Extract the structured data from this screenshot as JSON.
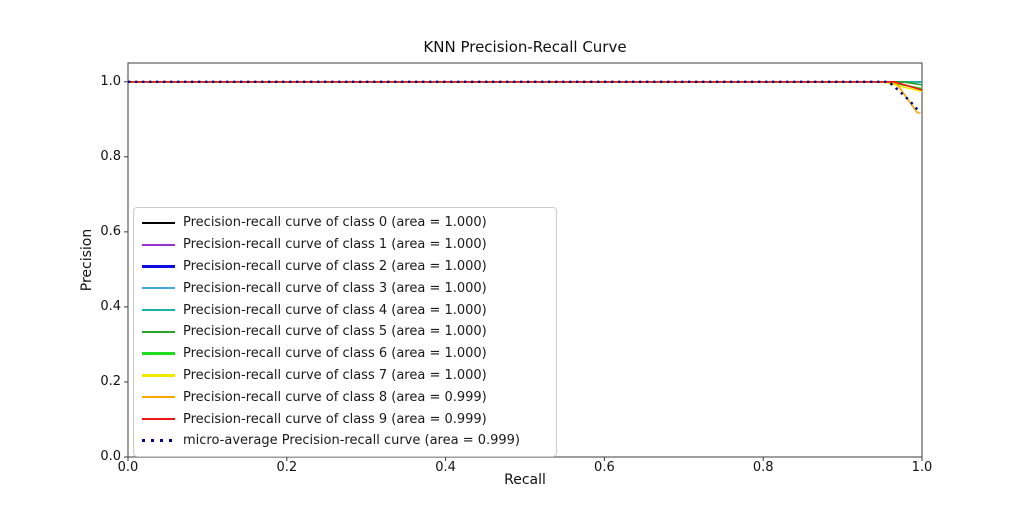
{
  "figure": {
    "title": "KNN Precision-Recall Curve",
    "xlabel": "Recall",
    "ylabel": "Precision"
  },
  "chart_data": {
    "type": "line",
    "title": "KNN Precision-Recall Curve",
    "xlabel": "Recall",
    "ylabel": "Precision",
    "xlim": [
      0.0,
      1.0
    ],
    "ylim": [
      0.0,
      1.05
    ],
    "grid": false,
    "legend_position": "lower left",
    "x_ticks": {
      "values": [
        0,
        0.2,
        0.4,
        0.6,
        0.8,
        1.0
      ],
      "labels": [
        "0.0",
        "0.2",
        "0.4",
        "0.6",
        "0.8",
        "1.0"
      ]
    },
    "y_ticks": {
      "values": [
        0,
        0.2,
        0.4,
        0.6,
        0.8,
        1.0
      ],
      "labels": [
        "0.0",
        "0.2",
        "0.4",
        "0.6",
        "0.8",
        "1.0"
      ]
    },
    "series": [
      {
        "name": "class-0",
        "legend_label": "Precision-recall curve of class 0 (area = 1.000)",
        "area": "1.000",
        "color": "#000000",
        "style": "solid",
        "points": [
          [
            0,
            1
          ],
          [
            1,
            1
          ]
        ]
      },
      {
        "name": "class-1",
        "legend_label": "Precision-recall curve of class 1 (area = 1.000)",
        "area": "1.000",
        "color": "#9932cc",
        "style": "solid",
        "points": [
          [
            0,
            1
          ],
          [
            1,
            1
          ]
        ]
      },
      {
        "name": "class-2",
        "legend_label": "Precision-recall curve of class 2 (area = 1.000)",
        "area": "1.000",
        "color": "#0d0de0",
        "style": "solid",
        "points": [
          [
            0,
            1
          ],
          [
            1,
            1
          ]
        ]
      },
      {
        "name": "class-3",
        "legend_label": "Precision-recall curve of class 3 (area = 1.000)",
        "area": "1.000",
        "color": "#3fa9e0",
        "style": "solid",
        "points": [
          [
            0,
            1
          ],
          [
            1,
            1
          ]
        ]
      },
      {
        "name": "class-4",
        "legend_label": "Precision-recall curve of class 4 (area = 1.000)",
        "area": "1.000",
        "color": "#1bb3a3",
        "style": "solid",
        "points": [
          [
            0,
            1
          ],
          [
            1,
            1
          ]
        ]
      },
      {
        "name": "class-5",
        "legend_label": "Precision-recall curve of class 5 (area = 1.000)",
        "area": "1.000",
        "color": "#28a228",
        "style": "solid",
        "points": [
          [
            0,
            1
          ],
          [
            0.975,
            1
          ],
          [
            1,
            0.992
          ]
        ]
      },
      {
        "name": "class-6",
        "legend_label": "Precision-recall curve of class 6 (area = 1.000)",
        "area": "1.000",
        "color": "#21dd21",
        "style": "solid",
        "points": [
          [
            0,
            1
          ],
          [
            0.955,
            1
          ],
          [
            1,
            0.982
          ]
        ]
      },
      {
        "name": "class-7",
        "legend_label": "Precision-recall curve of class 7 (area = 1.000)",
        "area": "1.000",
        "color": "#f0e800",
        "style": "solid",
        "points": [
          [
            0,
            1
          ],
          [
            0.95,
            1
          ],
          [
            1,
            0.974
          ]
        ]
      },
      {
        "name": "class-8",
        "legend_label": "Precision-recall curve of class 8 (area = 0.999)",
        "area": "0.999",
        "color": "#ffa500",
        "style": "solid",
        "points": [
          [
            0,
            1
          ],
          [
            0.96,
            1
          ],
          [
            0.968,
            0.995
          ],
          [
            0.994,
            0.918
          ],
          [
            0.997,
            0.916
          ]
        ]
      },
      {
        "name": "class-9",
        "legend_label": "Precision-recall curve of class 9 (area = 0.999)",
        "area": "0.999",
        "color": "#f01414",
        "style": "solid",
        "points": [
          [
            0,
            1
          ],
          [
            0.965,
            1
          ],
          [
            1,
            0.978
          ]
        ]
      },
      {
        "name": "micro-average",
        "legend_label": "micro-average Precision-recall curve (area = 0.999)",
        "area": "0.999",
        "color": "#00008b",
        "style": "dotted",
        "points": [
          [
            0,
            1
          ],
          [
            0.958,
            1
          ],
          [
            0.97,
            0.978
          ],
          [
            0.985,
            0.948
          ],
          [
            0.998,
            0.917
          ]
        ]
      }
    ]
  },
  "style": {
    "spine_color": "#3c3c3c",
    "tick_color": "#3c3c3c"
  }
}
